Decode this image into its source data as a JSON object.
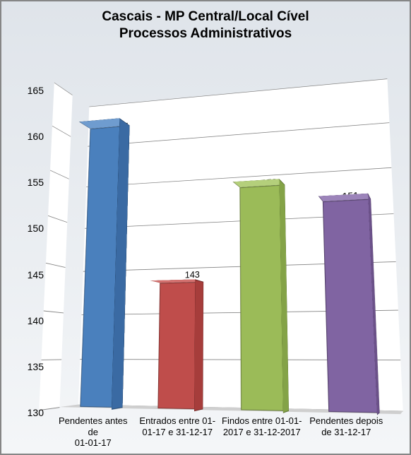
{
  "chart": {
    "type": "bar-3d",
    "title_line1": "Cascais - MP Central/Local Cível",
    "title_line2": "Processos Administrativos",
    "title_fontsize": 19,
    "title_weight": "bold",
    "title_color": "#000000",
    "background_gradient_top": "#dfe4ea",
    "background_gradient_bottom": "#f4f6f8",
    "outer_border_color": "#868686",
    "wall_color": "#ffffff",
    "floor_color": "#cfcfcf",
    "grid_color": "#7f7f7f",
    "axis_fontsize": 14,
    "xlabel_fontsize": 13,
    "value_label_fontsize": 14,
    "y": {
      "min": 130,
      "max": 165,
      "step": 5,
      "ticks": [
        130,
        135,
        140,
        145,
        150,
        155,
        160,
        165
      ]
    },
    "depth": 60,
    "bar_width_ratio": 0.55,
    "categories": [
      {
        "label": "Pendentes antes de\n01-01-17",
        "value": 161,
        "color_front": "#4a80bd",
        "color_top": "#6f9ccf",
        "color_side": "#3a6aa3"
      },
      {
        "label": "Entrados entre 01-\n01-17 e 31-12-17",
        "value": 143,
        "color_front": "#bf4d4b",
        "color_top": "#d3706e",
        "color_side": "#a63d3b"
      },
      {
        "label": "Findos entre 01-01-\n2017 e 31-12-2017",
        "value": 153,
        "color_front": "#9bbb58",
        "color_top": "#b4cf7b",
        "color_side": "#84a347"
      },
      {
        "label": "Pendentes depois\nde 31-12-17",
        "value": 151,
        "color_front": "#8064a2",
        "color_top": "#9c84ba",
        "color_side": "#6b5189"
      }
    ]
  }
}
